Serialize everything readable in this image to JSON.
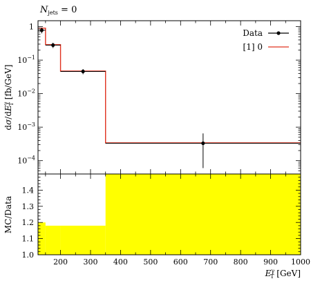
{
  "chart_data": [
    {
      "type": "line",
      "title": "N_jets = 0",
      "title_parts": {
        "base": "N",
        "sub": "jets",
        "rest": " = 0"
      },
      "ylabel": "dσ/dE_T^γ [fb/GeV]",
      "ylabel_parts": {
        "a": "d",
        "sigma": "σ",
        "b": "/d",
        "E": "E",
        "sup": "γ",
        "sub": "T",
        "unit": " [fb/GeV]"
      },
      "yscale": "log",
      "ylim": [
        4e-05,
        1.5
      ],
      "ytick_labels": [
        {
          "value": 1,
          "label": "1"
        },
        {
          "value": 0.1,
          "base": "10",
          "exp": "−1"
        },
        {
          "value": 0.01,
          "base": "10",
          "exp": "−2"
        },
        {
          "value": 0.001,
          "base": "10",
          "exp": "−3"
        },
        {
          "value": 0.0001,
          "base": "10",
          "exp": "−4"
        }
      ],
      "legend_position": "top-right",
      "series": [
        {
          "name": "Data",
          "kind": "points",
          "color": "#000000",
          "points": [
            {
              "x": 137.5,
              "xerr": [
                12.5,
                12.5
              ],
              "y": 0.78,
              "yerr": [
                0.15,
                0.15
              ]
            },
            {
              "x": 175,
              "xerr": [
                25,
                25
              ],
              "y": 0.28,
              "yerr": [
                0.05,
                0.05
              ]
            },
            {
              "x": 275,
              "xerr": [
                75,
                75
              ],
              "y": 0.046,
              "yerr": [
                0.008,
                0.008
              ]
            },
            {
              "x": 675,
              "xerr": [
                325,
                325
              ],
              "y": 0.00033,
              "yerr": [
                0.00027,
                0.00032
              ]
            }
          ]
        },
        {
          "name": "[1] 0",
          "kind": "step",
          "color": "#e0301e",
          "edges": [
            125,
            150,
            200,
            350,
            1000
          ],
          "values": [
            0.9,
            0.29,
            0.047,
            0.00034
          ]
        }
      ]
    },
    {
      "type": "area",
      "ylabel": "MC/Data",
      "xlabel": "E_T^γ [GeV]",
      "xlabel_parts": {
        "E": "E",
        "sup": "γ",
        "sub": "T",
        "unit": " [GeV]"
      },
      "xlim": [
        125,
        1000
      ],
      "ylim": [
        1.0,
        1.5
      ],
      "xticks": [
        200,
        300,
        400,
        500,
        600,
        700,
        800,
        900,
        1000
      ],
      "yticks": [
        1.0,
        1.1,
        1.2,
        1.3,
        1.4
      ],
      "band": {
        "color": "#ffff00",
        "edges": [
          125,
          150,
          200,
          350,
          1000
        ],
        "lower": [
          1.0,
          1.0,
          1.0,
          1.0
        ],
        "upper": [
          1.2,
          1.18,
          1.18,
          1.5
        ]
      }
    }
  ]
}
